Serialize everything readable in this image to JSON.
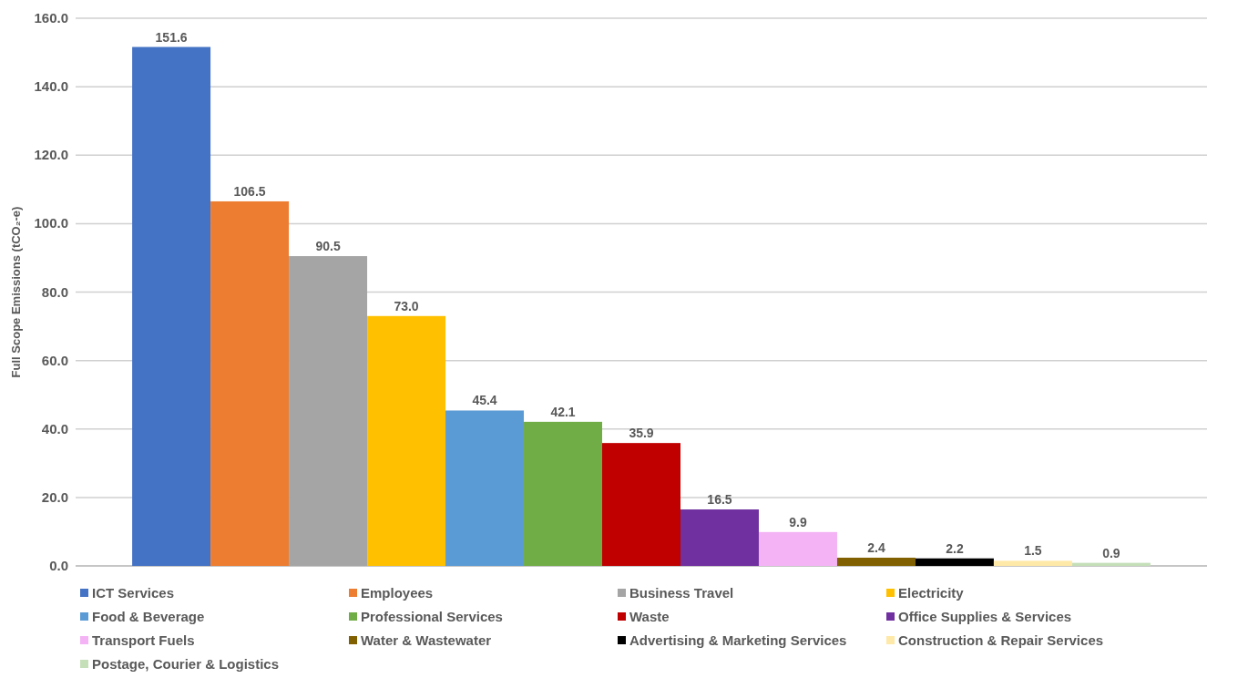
{
  "chart_data": {
    "type": "bar",
    "ylabel": "Full Scope Emissions (tCO₂-e)",
    "categories": [
      null
    ],
    "series": [
      {
        "name": "ICT Services",
        "color": "#4472c4",
        "values": [
          151.6
        ],
        "value_labels": [
          "151.6"
        ]
      },
      {
        "name": "Employees",
        "color": "#ed7d31",
        "values": [
          106.5
        ],
        "value_labels": [
          "106.5"
        ]
      },
      {
        "name": "Business Travel",
        "color": "#a5a5a5",
        "values": [
          90.5
        ],
        "value_labels": [
          "90.5"
        ]
      },
      {
        "name": "Electricity",
        "color": "#ffc000",
        "values": [
          73.0
        ],
        "value_labels": [
          "73.0"
        ]
      },
      {
        "name": "Food & Beverage",
        "color": "#5b9bd5",
        "values": [
          45.4
        ],
        "value_labels": [
          "45.4"
        ]
      },
      {
        "name": "Professional Services",
        "color": "#70ad47",
        "values": [
          42.1
        ],
        "value_labels": [
          "42.1"
        ]
      },
      {
        "name": "Waste",
        "color": "#c00000",
        "values": [
          35.9
        ],
        "value_labels": [
          "35.9"
        ]
      },
      {
        "name": "Office Supplies & Services",
        "color": "#7030a0",
        "values": [
          16.5
        ],
        "value_labels": [
          "16.5"
        ]
      },
      {
        "name": "Transport Fuels",
        "color": "#f4b3f4",
        "values": [
          9.9
        ],
        "value_labels": [
          "9.9"
        ]
      },
      {
        "name": "Water & Wastewater",
        "color": "#806000",
        "values": [
          2.4
        ],
        "value_labels": [
          "2.4"
        ]
      },
      {
        "name": "Advertising & Marketing Services",
        "color": "#000000",
        "values": [
          2.2
        ],
        "value_labels": [
          "2.2"
        ]
      },
      {
        "name": "Construction & Repair Services",
        "color": "#ffe9a8",
        "values": [
          1.5
        ],
        "value_labels": [
          "1.5"
        ]
      },
      {
        "name": "Postage, Courier & Logistics",
        "color": "#c5dfb9",
        "values": [
          0.9
        ],
        "value_labels": [
          "0.9"
        ]
      }
    ],
    "ylim": [
      0,
      160
    ],
    "yticks": [
      {
        "value": 0,
        "label": "0.0"
      },
      {
        "value": 20,
        "label": "20.0"
      },
      {
        "value": 40,
        "label": "40.0"
      },
      {
        "value": 60,
        "label": "60.0"
      },
      {
        "value": 80,
        "label": "80.0"
      },
      {
        "value": 100,
        "label": "100.0"
      },
      {
        "value": 120,
        "label": "120.0"
      },
      {
        "value": 140,
        "label": "140.0"
      },
      {
        "value": 160,
        "label": "160.0"
      }
    ],
    "grid": "y",
    "legend": "bottom"
  }
}
